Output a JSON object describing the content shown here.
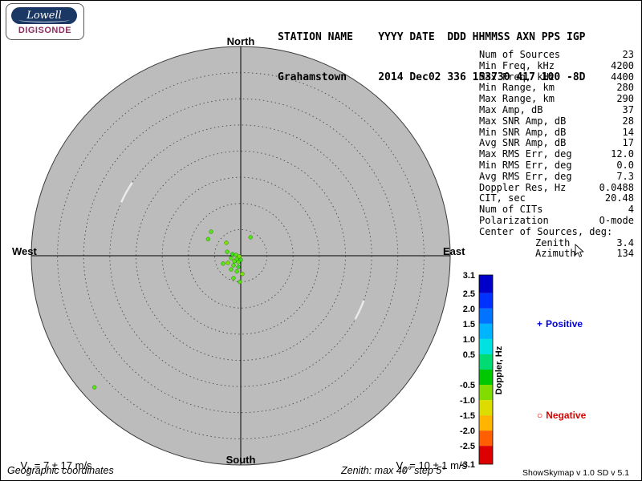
{
  "logo": {
    "brand": "Lowell",
    "product": "DIGISONDE"
  },
  "header": {
    "line1": "STATION NAME    YYYY DATE  DDD HHMMSS AXN PPS IGP",
    "line2": "Grahamstown     2014 Dec02 336 153730 417 100 -8D"
  },
  "stats": {
    "rows": [
      {
        "label": "Num of Sources",
        "value": "23"
      },
      {
        "label": "Min Freq, kHz",
        "value": "4200"
      },
      {
        "label": "Max Freq, kHz",
        "value": "4400"
      },
      {
        "label": "Min Range, km",
        "value": "280"
      },
      {
        "label": "Max Range, km",
        "value": "290"
      },
      {
        "label": "Max Amp, dB",
        "value": "37"
      },
      {
        "label": "Max SNR Amp, dB",
        "value": "28"
      },
      {
        "label": "Min SNR Amp, dB",
        "value": "14"
      },
      {
        "label": "Avg SNR Amp, dB",
        "value": "17"
      },
      {
        "label": "Max RMS Err, deg",
        "value": "12.0"
      },
      {
        "label": "Min RMS Err, deg",
        "value": "0.0"
      },
      {
        "label": "Avg RMS Err, deg",
        "value": "7.3"
      },
      {
        "label": "Doppler Res, Hz",
        "value": "0.0488"
      },
      {
        "label": "CIT, sec",
        "value": "20.48"
      },
      {
        "label": "Num of CITs",
        "value": "4"
      },
      {
        "label": "Polarization",
        "value": "O-mode"
      },
      {
        "label": "Center of Sources, deg:",
        "value": ""
      },
      {
        "label": "Zenith",
        "value": "3.4",
        "indent": true
      },
      {
        "label": "Azimuth",
        "value": "134",
        "indent": true
      }
    ]
  },
  "skymap": {
    "labels": {
      "north": "North",
      "south": "South",
      "east": "East",
      "west": "West"
    },
    "bg_color": "#bcbcbc",
    "ring_color": "#4a4a4a",
    "white_arcs": [
      {
        "zen": 25,
        "from_az": 294,
        "to_az": 304
      },
      {
        "zen": 25,
        "from_az": 110,
        "to_az": 119
      }
    ]
  },
  "chart_data": {
    "type": "scatter",
    "projection": "polar skymap (azimuth from North clockwise, zenith angle radial)",
    "max_zenith_deg": 40,
    "ring_step_deg": 5,
    "sources": [
      {
        "zen": 7.3,
        "az": 309,
        "color": "#55e517"
      },
      {
        "zen": 7.0,
        "az": 297,
        "color": "#55e517"
      },
      {
        "zen": 3.7,
        "az": 312,
        "color": "#7ce300"
      },
      {
        "zen": 4.0,
        "az": 28,
        "color": "#55e517"
      },
      {
        "zen": 2.7,
        "az": 286,
        "color": "#55e517"
      },
      {
        "zen": 1.6,
        "az": 281,
        "color": "#3bdb23"
      },
      {
        "zen": 0.9,
        "az": 280,
        "color": "#55e517"
      },
      {
        "zen": 0.3,
        "az": 243,
        "color": "#7ce300"
      },
      {
        "zen": 1.9,
        "az": 256,
        "color": "#55e517"
      },
      {
        "zen": 1.0,
        "az": 231,
        "color": "#55e517"
      },
      {
        "zen": 0.8,
        "az": 180,
        "color": "#3bdb23"
      },
      {
        "zen": 1.6,
        "az": 229,
        "color": "#55e517"
      },
      {
        "zen": 1.3,
        "az": 201,
        "color": "#55e517"
      },
      {
        "zen": 2.8,
        "az": 241,
        "color": "#7ce300"
      },
      {
        "zen": 3.7,
        "az": 246,
        "color": "#55e517"
      },
      {
        "zen": 2.3,
        "az": 217,
        "color": "#55e517"
      },
      {
        "zen": 2.2,
        "az": 192,
        "color": "#3bdb23"
      },
      {
        "zen": 3.2,
        "az": 215,
        "color": "#55e517"
      },
      {
        "zen": 3.1,
        "az": 194,
        "color": "#55e517"
      },
      {
        "zen": 3.5,
        "az": 175,
        "color": "#7ce300"
      },
      {
        "zen": 4.5,
        "az": 198,
        "color": "#55e517"
      },
      {
        "zen": 5.0,
        "az": 182,
        "color": "#55e517"
      },
      {
        "zen": 37.6,
        "az": 228,
        "color": "#55e517"
      }
    ],
    "colorbar": {
      "label": "Doppler, Hz",
      "max": 3.1,
      "min": -3.1,
      "ticks": [
        3.1,
        2.5,
        2.0,
        1.5,
        1.0,
        0.5,
        -0.5,
        -1.0,
        -1.5,
        -2.0,
        -2.5,
        -3.1
      ],
      "segments": [
        {
          "from": 3.1,
          "to": 2.5,
          "color": "#0000c8"
        },
        {
          "from": 2.5,
          "to": 2.0,
          "color": "#0032ff"
        },
        {
          "from": 2.0,
          "to": 1.5,
          "color": "#0073ff"
        },
        {
          "from": 1.5,
          "to": 1.0,
          "color": "#00b4ff"
        },
        {
          "from": 1.0,
          "to": 0.5,
          "color": "#00e1e1"
        },
        {
          "from": 0.5,
          "to": 0.0,
          "color": "#00dc73"
        },
        {
          "from": 0.0,
          "to": -0.5,
          "color": "#00c800"
        },
        {
          "from": -0.5,
          "to": -1.0,
          "color": "#82dc00"
        },
        {
          "from": -1.0,
          "to": -1.5,
          "color": "#dcdc00"
        },
        {
          "from": -1.5,
          "to": -2.0,
          "color": "#ffb400"
        },
        {
          "from": -2.0,
          "to": -2.5,
          "color": "#ff5f00"
        },
        {
          "from": -2.5,
          "to": -3.1,
          "color": "#dc0000"
        }
      ]
    }
  },
  "legend": {
    "positive": {
      "marker": "+",
      "label": "Positive",
      "color": "#0000dd"
    },
    "negative": {
      "marker": "○",
      "label": "Negative",
      "color": "#dd0000"
    }
  },
  "footer": {
    "vh": {
      "base": "V",
      "sub": "h",
      "rest": " = 7 ± 17 m/s"
    },
    "vz": {
      "base": "V",
      "sub": "z",
      "rest": " = 10 ± 1 m/s"
    },
    "coords": "Geographic coordinates",
    "zenith_note": "Zenith: max 40°  step 5°",
    "version": "ShowSkymap v 1.0  SD v 5.1"
  }
}
